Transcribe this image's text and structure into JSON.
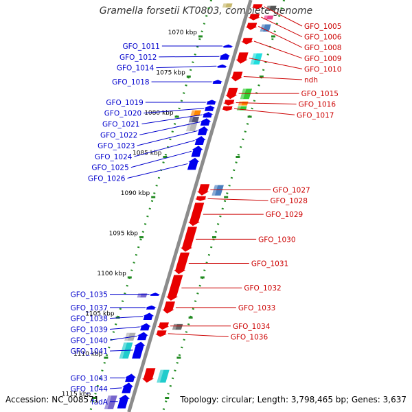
{
  "title": "Gramella forsetii KT0803, complete genome",
  "footer": {
    "accession": "Accession: NC_008571",
    "topology": "Topology: circular; Length: 3,798,465 bp; Genes: 3,637"
  },
  "colors": {
    "backbone": "#8c8c8c",
    "tick": "#228b22",
    "forward_gene": "#e80000",
    "reverse_gene": "#0000ee",
    "forward_label": "#cc0000",
    "reverse_label": "#0000cc"
  },
  "scale": [
    {
      "kbp": 1070,
      "label": "1070 kbp"
    },
    {
      "kbp": 1075,
      "label": "1075 kbp"
    },
    {
      "kbp": 1080,
      "label": "1080 kbp"
    },
    {
      "kbp": 1085,
      "label": "1085 kbp"
    },
    {
      "kbp": 1090,
      "label": "1090 kbp"
    },
    {
      "kbp": 1095,
      "label": "1095 kbp"
    },
    {
      "kbp": 1100,
      "label": "1100 kbp"
    },
    {
      "kbp": 1105,
      "label": "1105 kbp"
    },
    {
      "kbp": 1110,
      "label": "1110 kbp"
    },
    {
      "kbp": 1115,
      "label": "1115 kbp"
    }
  ],
  "forward_genes": [
    {
      "name": "GFO_1005",
      "start": 1066.0,
      "end": 1066.6
    },
    {
      "name": "GFO_1006",
      "start": 1067.2,
      "end": 1068.0
    },
    {
      "name": "GFO_1008",
      "start": 1068.3,
      "end": 1069.2
    },
    {
      "name": "GFO_1009",
      "start": 1070.2,
      "end": 1071.0
    },
    {
      "name": "GFO_1010",
      "start": 1072.0,
      "end": 1073.4
    },
    {
      "name": "ndh",
      "start": 1074.4,
      "end": 1075.6
    },
    {
      "name": "GFO_1015",
      "start": 1076.4,
      "end": 1077.8
    },
    {
      "name": "GFO_1016",
      "start": 1077.9,
      "end": 1078.6
    },
    {
      "name": "GFO_1017",
      "start": 1078.7,
      "end": 1079.3
    },
    {
      "name": "GFO_1027",
      "start": 1088.4,
      "end": 1089.8
    },
    {
      "name": "GFO_1028",
      "start": 1089.9,
      "end": 1090.5
    },
    {
      "name": "GFO_1029",
      "start": 1090.7,
      "end": 1093.6
    },
    {
      "name": "GFO_1030",
      "start": 1093.7,
      "end": 1096.8
    },
    {
      "name": "GFO_1031",
      "start": 1096.9,
      "end": 1099.6
    },
    {
      "name": "GFO_1032",
      "start": 1099.7,
      "end": 1102.9
    },
    {
      "name": "GFO_1033",
      "start": 1103.0,
      "end": 1104.5
    },
    {
      "name": "GFO_1034",
      "start": 1105.6,
      "end": 1106.5
    },
    {
      "name": "GFO_1036",
      "start": 1106.6,
      "end": 1107.4
    },
    {
      "name": "",
      "start": 1111.3,
      "end": 1113.1
    }
  ],
  "reverse_genes": [
    {
      "name": "GFO_1011",
      "start": 1071.0,
      "end": 1071.4
    },
    {
      "name": "GFO_1012",
      "start": 1072.1,
      "end": 1072.9
    },
    {
      "name": "GFO_1014",
      "start": 1073.5,
      "end": 1073.9
    },
    {
      "name": "GFO_1018",
      "start": 1075.4,
      "end": 1075.9
    },
    {
      "name": "GFO_1019",
      "start": 1077.9,
      "end": 1078.5
    },
    {
      "name": "GFO_1020",
      "start": 1078.6,
      "end": 1079.3
    },
    {
      "name": "GFO_1021",
      "start": 1079.4,
      "end": 1080.1
    },
    {
      "name": "GFO_1022",
      "start": 1080.2,
      "end": 1081.1
    },
    {
      "name": "GFO_1023",
      "start": 1081.2,
      "end": 1082.3
    },
    {
      "name": "GFO_1024",
      "start": 1082.4,
      "end": 1083.5
    },
    {
      "name": "GFO_1025",
      "start": 1083.6,
      "end": 1085.0
    },
    {
      "name": "GFO_1026",
      "start": 1085.1,
      "end": 1086.6
    },
    {
      "name": "GFO_1035",
      "start": 1101.9,
      "end": 1102.3
    },
    {
      "name": "GFO_1037",
      "start": 1103.5,
      "end": 1104.0
    },
    {
      "name": "GFO_1038",
      "start": 1104.4,
      "end": 1105.3
    },
    {
      "name": "GFO_1039",
      "start": 1105.7,
      "end": 1106.6
    },
    {
      "name": "GFO_1040",
      "start": 1106.8,
      "end": 1107.8
    },
    {
      "name": "GFO_1041",
      "start": 1108.0,
      "end": 1110.1
    },
    {
      "name": "GFO_1043",
      "start": 1112.0,
      "end": 1113.0
    },
    {
      "name": "GFO_1044",
      "start": 1113.1,
      "end": 1114.4
    },
    {
      "name": "fadA",
      "start": 1114.6,
      "end": 1116.3
    }
  ],
  "features": [
    {
      "strand": "+",
      "start": 1066.2,
      "end": 1066.8,
      "color": "#555555"
    },
    {
      "strand": "+",
      "start": 1067.4,
      "end": 1067.9,
      "color": "#e8408a"
    },
    {
      "strand": "+",
      "start": 1068.5,
      "end": 1069.4,
      "color": "#4a7fbf"
    },
    {
      "strand": "+",
      "start": 1072.1,
      "end": 1073.5,
      "color": "#20dede"
    },
    {
      "strand": "+",
      "start": 1076.5,
      "end": 1077.8,
      "color": "#33cc33"
    },
    {
      "strand": "+",
      "start": 1078.1,
      "end": 1078.6,
      "color": "#ff8800"
    },
    {
      "strand": "+",
      "start": 1078.7,
      "end": 1079.2,
      "color": "#33cc33"
    },
    {
      "strand": "+",
      "start": 1088.5,
      "end": 1089.8,
      "color": "#4a7fbf"
    },
    {
      "strand": "+",
      "start": 1105.8,
      "end": 1106.5,
      "color": "#666666"
    },
    {
      "strand": "+",
      "start": 1111.5,
      "end": 1113.1,
      "color": "#20cccc"
    },
    {
      "strand": "-",
      "start": 1065.9,
      "end": 1066.4,
      "color": "#c8b96e"
    },
    {
      "strand": "-",
      "start": 1079.2,
      "end": 1079.9,
      "color": "#ff8800"
    },
    {
      "strand": "-",
      "start": 1080.0,
      "end": 1080.7,
      "color": "#555577"
    },
    {
      "strand": "-",
      "start": 1080.8,
      "end": 1081.8,
      "color": "#b8b8b8"
    },
    {
      "strand": "-",
      "start": 1102.0,
      "end": 1102.5,
      "color": "#7766cc"
    },
    {
      "strand": "-",
      "start": 1106.9,
      "end": 1107.9,
      "color": "#b0b0b0"
    },
    {
      "strand": "-",
      "start": 1108.1,
      "end": 1110.1,
      "color": "#20cccc"
    },
    {
      "strand": "-",
      "start": 1114.7,
      "end": 1116.4,
      "color": "#7766cc"
    }
  ]
}
